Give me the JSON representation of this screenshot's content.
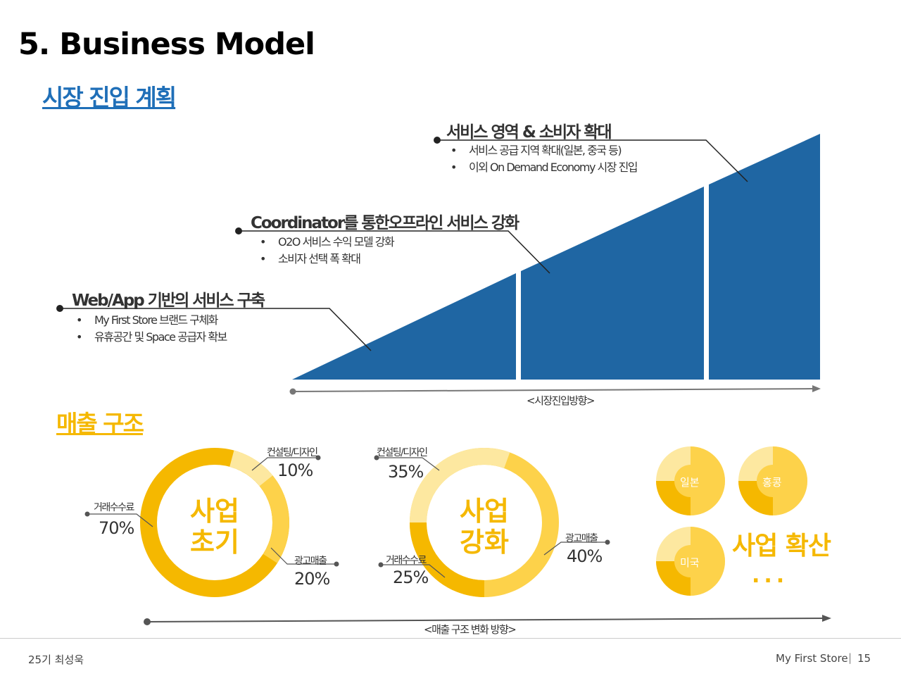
{
  "slide": {
    "title": "5. Business Model",
    "section_market": "시장 진입 계획",
    "section_revenue": "매출 구조"
  },
  "market": {
    "phases": [
      {
        "title": "Web/App 기반의 서비스 구축",
        "bullets": [
          "My First Store 브랜드 구체화",
          "유휴공간 및 Space 공급자 확보"
        ]
      },
      {
        "title": "Coordinator를 통한오프라인 서비스 강화",
        "bullets": [
          "O2O 서비스 수익 모델 강화",
          "소비자 선택 폭 확대"
        ]
      },
      {
        "title": "서비스 영역 & 소비자 확대",
        "bullets": [
          "서비스 공급 지역 확대(일본, 중국 등)",
          "이외 On Demand Economy 시장 진입"
        ]
      }
    ],
    "bullet_char": "•",
    "axis_label": "<시장진입방향>",
    "color": "#1f66a3"
  },
  "revenue": {
    "stages": [
      {
        "center": [
          "사업",
          "초기"
        ],
        "segments": [
          {
            "label": "거래수수료",
            "value": "70%",
            "pct": 70
          },
          {
            "label": "컨설팅/디자인",
            "value": "10%",
            "pct": 10
          },
          {
            "label": "광고매출",
            "value": "20%",
            "pct": 20
          }
        ]
      },
      {
        "center": [
          "사업",
          "강화"
        ],
        "segments": [
          {
            "label": "컨설팅/디자인",
            "value": "35%",
            "pct": 35
          },
          {
            "label": "광고매출",
            "value": "40%",
            "pct": 40
          },
          {
            "label": "거래수수료",
            "value": "25%",
            "pct": 25
          }
        ]
      }
    ],
    "expansion": {
      "countries": [
        "일본",
        "홍콩",
        "미국"
      ],
      "label": "사업 확산",
      "dots": "..."
    },
    "axis_label": "<매출 구조 변화 방향>",
    "colors": {
      "dark": "#f5b800",
      "mid": "#fdd24a",
      "light": "#fde8a0"
    }
  },
  "footer": {
    "left": "25기 최성욱",
    "brand": "My First Store",
    "separator": "|",
    "page": "15"
  }
}
